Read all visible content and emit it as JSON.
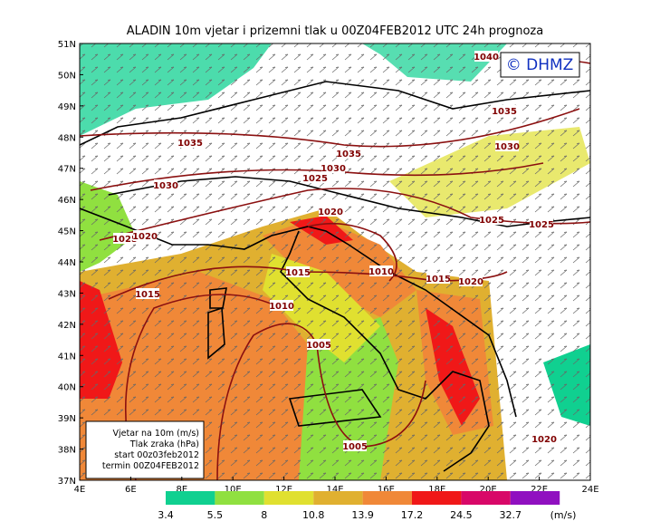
{
  "header": {
    "title": "ALADIN 10m vjetar i prizemni tlak u 00Z04FEB2012 UTC 24h prognoza",
    "logo": "© DHMZ"
  },
  "lat_labels": [
    "51N",
    "50N",
    "49N",
    "48N",
    "47N",
    "46N",
    "45N",
    "44N",
    "43N",
    "42N",
    "41N",
    "40N",
    "39N",
    "38N",
    "37N"
  ],
  "lon_labels": [
    "4E",
    "6E",
    "8E",
    "10E",
    "12E",
    "14E",
    "16E",
    "18E",
    "20E",
    "22E",
    "24E"
  ],
  "isobar_labels": [
    "1040",
    "1035",
    "1035",
    "1035",
    "1030",
    "1030",
    "1030",
    "1025",
    "1025",
    "1020",
    "1020",
    "1025",
    "1025",
    "1015",
    "1015",
    "1010",
    "1015",
    "1020",
    "1010",
    "1005",
    "1005",
    "1020"
  ],
  "legend": {
    "lines": [
      "Vjetar na 10m (m/s)",
      "Tlak zraka (hPa)",
      "start 00z03feb2012",
      "termin 00Z04FEB2012"
    ]
  },
  "colorbar": {
    "values": [
      3.4,
      5.5,
      8,
      10.8,
      13.9,
      17.2,
      24.5,
      32.7
    ],
    "colors": [
      "#10d090",
      "#90e040",
      "#e0e030",
      "#e0b030",
      "#f08838",
      "#f01818",
      "#d80868",
      "#9010c0"
    ],
    "unit": "(m/s)"
  }
}
